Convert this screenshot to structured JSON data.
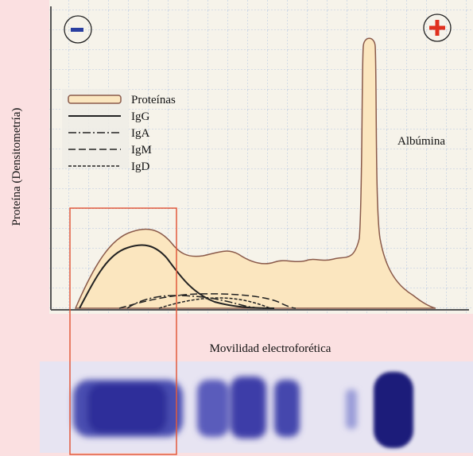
{
  "axis_labels": {
    "y": "Proteína (Densitometría)",
    "x": "Movilidad electroforética"
  },
  "legend": {
    "items": [
      "Proteínas",
      "IgG",
      "IgA",
      "IgM",
      "IgD"
    ]
  },
  "annotations": {
    "peak": "Albúmina"
  }
}
